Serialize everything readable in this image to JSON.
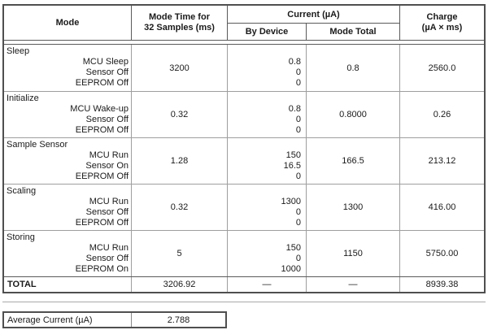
{
  "table": {
    "headers": {
      "mode": "Mode",
      "time_line1": "Mode Time for",
      "time_line2": "32 Samples (ms)",
      "current": "Current (µA)",
      "by_device": "By Device",
      "mode_total": "Mode Total",
      "charge_line1": "Charge",
      "charge_line2": "(µA × ms)"
    },
    "rows": [
      {
        "name": "Sleep",
        "sub": [
          "MCU Sleep",
          "Sensor Off",
          "EEPROM Off"
        ],
        "time": "3200",
        "by_device": [
          "0.8",
          "0",
          "0"
        ],
        "mode_total": "0.8",
        "charge": "2560.0"
      },
      {
        "name": "Initialize",
        "sub": [
          "MCU Wake-up",
          "Sensor Off",
          "EEPROM Off"
        ],
        "time": "0.32",
        "by_device": [
          "0.8",
          "0",
          "0"
        ],
        "mode_total": "0.8000",
        "charge": "0.26"
      },
      {
        "name": "Sample Sensor",
        "sub": [
          "MCU Run",
          "Sensor On",
          "EEPROM Off"
        ],
        "time": "1.28",
        "by_device": [
          "150",
          "16.5",
          "0"
        ],
        "mode_total": "166.5",
        "charge": "213.12"
      },
      {
        "name": "Scaling",
        "sub": [
          "MCU Run",
          "Sensor Off",
          "EEPROM Off"
        ],
        "time": "0.32",
        "by_device": [
          "1300",
          "0",
          "0"
        ],
        "mode_total": "1300",
        "charge": "416.00"
      },
      {
        "name": "Storing",
        "sub": [
          "MCU Run",
          "Sensor Off",
          "EEPROM On"
        ],
        "time": "5",
        "by_device": [
          "150",
          "0",
          "1000"
        ],
        "mode_total": "1150",
        "charge": "5750.00"
      }
    ],
    "total": {
      "label": "TOTAL",
      "time": "3206.92",
      "by_device": "—",
      "mode_total": "—",
      "charge": "8939.38"
    }
  },
  "average": {
    "label": "Average Current (µA)",
    "value": "2.788"
  },
  "colors": {
    "outer_border": "#4f4f4f",
    "inner_border": "#9e9e9e",
    "text": "#1a1a1a",
    "background": "#ffffff"
  }
}
